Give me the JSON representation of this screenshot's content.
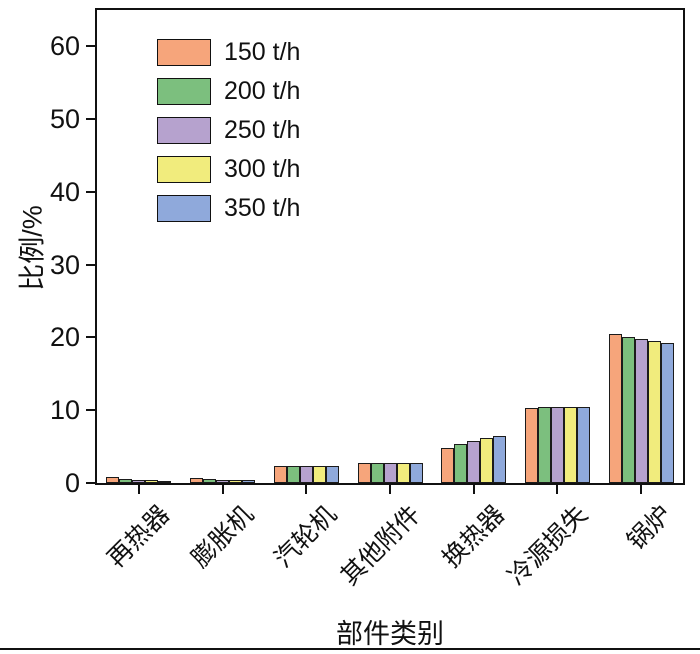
{
  "chart_data": {
    "type": "bar",
    "title": "",
    "xlabel": "部件类别",
    "ylabel": "比例/%",
    "ylim": [
      0,
      65
    ],
    "yticks": [
      0,
      10,
      20,
      30,
      40,
      50,
      60
    ],
    "grid": false,
    "legend_position": "upper-left",
    "bar_outline_color": "#1b1b1b",
    "categories": [
      "再热器",
      "膨胀机",
      "汽轮机",
      "其他附件",
      "换热器",
      "冷源损失",
      "锅炉"
    ],
    "series": [
      {
        "name": "150 t/h",
        "color": "#F6A57B",
        "values": [
          0.8,
          0.7,
          2.3,
          2.8,
          4.8,
          10.3,
          20.5
        ]
      },
      {
        "name": "200 t/h",
        "color": "#7CBF7E",
        "values": [
          0.55,
          0.5,
          2.3,
          2.8,
          5.4,
          10.4,
          20.0
        ]
      },
      {
        "name": "250 t/h",
        "color": "#B6A2CE",
        "values": [
          0.45,
          0.45,
          2.3,
          2.8,
          5.8,
          10.4,
          19.8
        ]
      },
      {
        "name": "300 t/h",
        "color": "#F1EC7D",
        "values": [
          0.4,
          0.4,
          2.3,
          2.8,
          6.2,
          10.5,
          19.5
        ]
      },
      {
        "name": "350 t/h",
        "color": "#8FA9DB",
        "values": [
          0.3,
          0.35,
          2.3,
          2.8,
          6.5,
          10.5,
          19.2
        ]
      }
    ]
  }
}
